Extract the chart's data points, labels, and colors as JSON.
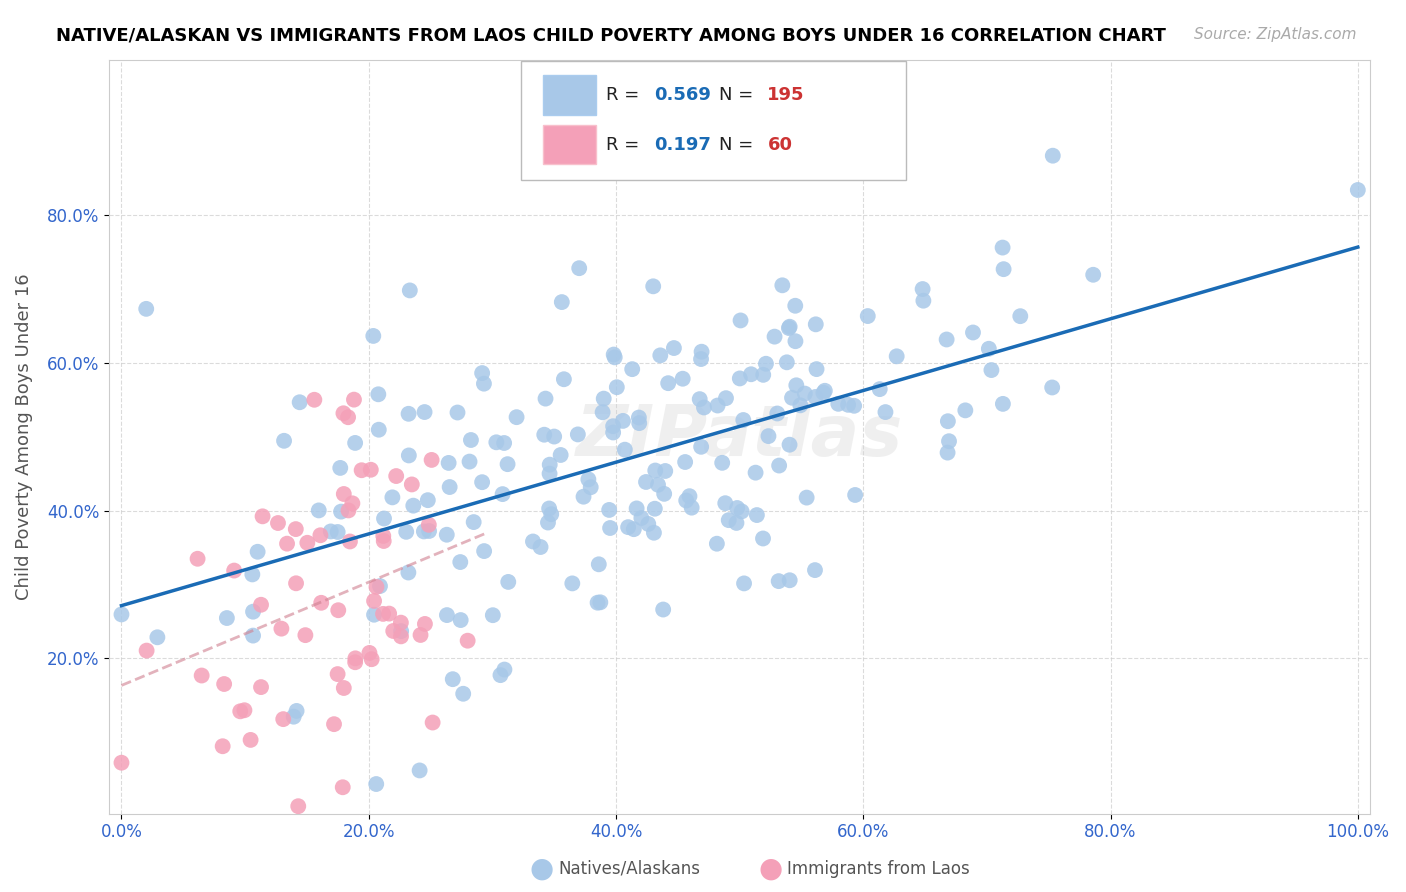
{
  "title": "NATIVE/ALASKAN VS IMMIGRANTS FROM LAOS CHILD POVERTY AMONG BOYS UNDER 16 CORRELATION CHART",
  "source": "Source: ZipAtlas.com",
  "ylabel": "Child Poverty Among Boys Under 16",
  "blue_R": 0.569,
  "blue_N": 195,
  "pink_R": 0.197,
  "pink_N": 60,
  "blue_color": "#a8c8e8",
  "pink_color": "#f4a0b8",
  "blue_line_color": "#1a6bb5",
  "pink_line_color": "#d08090",
  "watermark": "ZIPatlas",
  "background_color": "#ffffff",
  "grid_color": "#cccccc",
  "title_color": "#000000",
  "source_color": "#aaaaaa",
  "axis_label_color": "#3366cc",
  "legend_R_color": "#3366cc",
  "legend_N_color": "#cc3333"
}
